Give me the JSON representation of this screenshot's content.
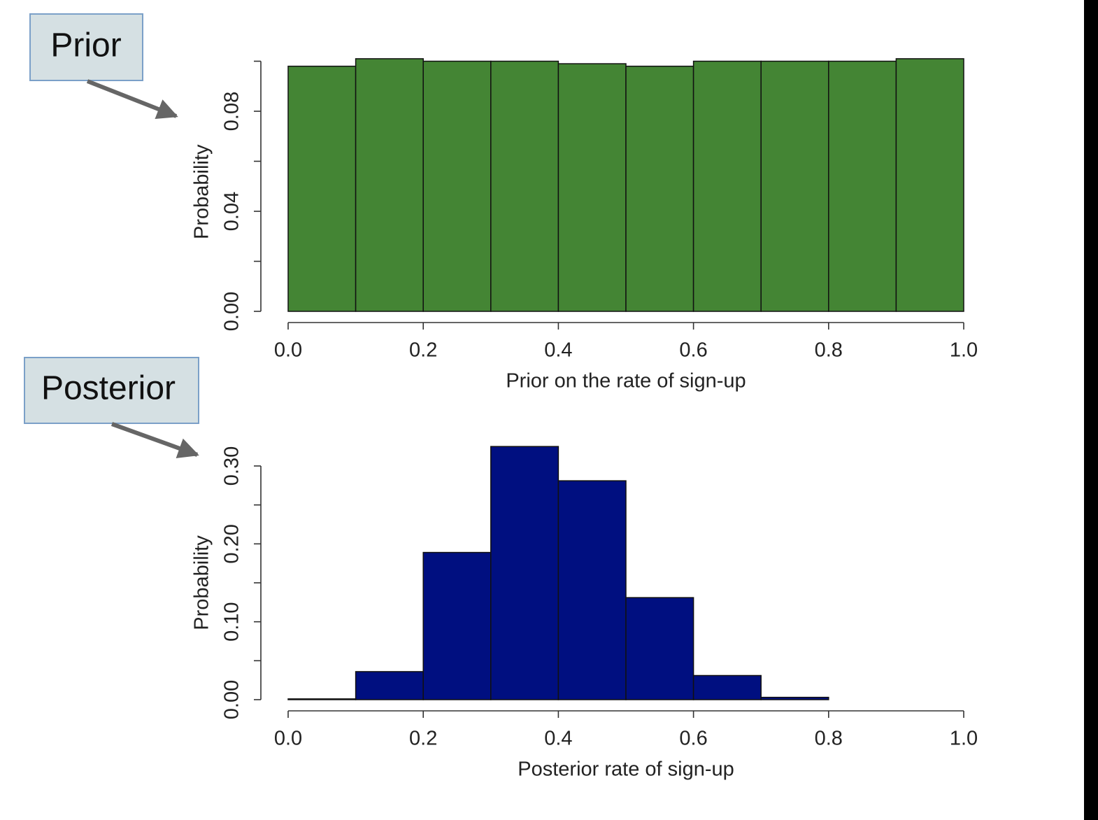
{
  "chart_data": [
    {
      "type": "histogram",
      "annotation": "Prior",
      "ylabel": "Probability",
      "xlabel": "Prior on the rate of sign-up",
      "color": "#448534",
      "bins": [
        0,
        0.1,
        0.2,
        0.3,
        0.4,
        0.5,
        0.6,
        0.7,
        0.8,
        0.9,
        1.0
      ],
      "values": [
        0.098,
        0.101,
        0.1,
        0.1,
        0.099,
        0.098,
        0.1,
        0.1,
        0.1,
        0.101
      ],
      "xlim": [
        0,
        1
      ],
      "xticks": [
        {
          "value": 0,
          "label": "0.0"
        },
        {
          "value": 0.2,
          "label": "0.2"
        },
        {
          "value": 0.4,
          "label": "0.4"
        },
        {
          "value": 0.6,
          "label": "0.6"
        },
        {
          "value": 0.8,
          "label": "0.8"
        },
        {
          "value": 1,
          "label": "1.0"
        }
      ],
      "ylim": [
        0,
        0.1
      ],
      "yticks": [
        {
          "value": 0,
          "label": "0.00"
        },
        {
          "value": 0.04,
          "label": "0.04"
        },
        {
          "value": 0.08,
          "label": "0.08"
        }
      ],
      "yminor_ticks": [
        0.02,
        0.06,
        0.1
      ]
    },
    {
      "type": "histogram",
      "annotation": "Posterior",
      "ylabel": "Probability",
      "xlabel": "Posterior rate of sign-up",
      "color": "#000f80",
      "bins": [
        0,
        0.1,
        0.2,
        0.3,
        0.4,
        0.5,
        0.6,
        0.7,
        0.8,
        0.9,
        1.0
      ],
      "values": [
        0.001,
        0.036,
        0.189,
        0.325,
        0.281,
        0.131,
        0.031,
        0.003,
        0,
        0
      ],
      "xlim": [
        0,
        1
      ],
      "xticks": [
        {
          "value": 0,
          "label": "0.0"
        },
        {
          "value": 0.2,
          "label": "0.2"
        },
        {
          "value": 0.4,
          "label": "0.4"
        },
        {
          "value": 0.6,
          "label": "0.6"
        },
        {
          "value": 0.8,
          "label": "0.8"
        },
        {
          "value": 1,
          "label": "1.0"
        }
      ],
      "ylim": [
        0,
        0.3
      ],
      "yticks": [
        {
          "value": 0,
          "label": "0.00"
        },
        {
          "value": 0.1,
          "label": "0.10"
        },
        {
          "value": 0.2,
          "label": "0.20"
        },
        {
          "value": 0.3,
          "label": "0.30"
        }
      ],
      "yminor_ticks": [
        0.05,
        0.15,
        0.25
      ]
    }
  ]
}
